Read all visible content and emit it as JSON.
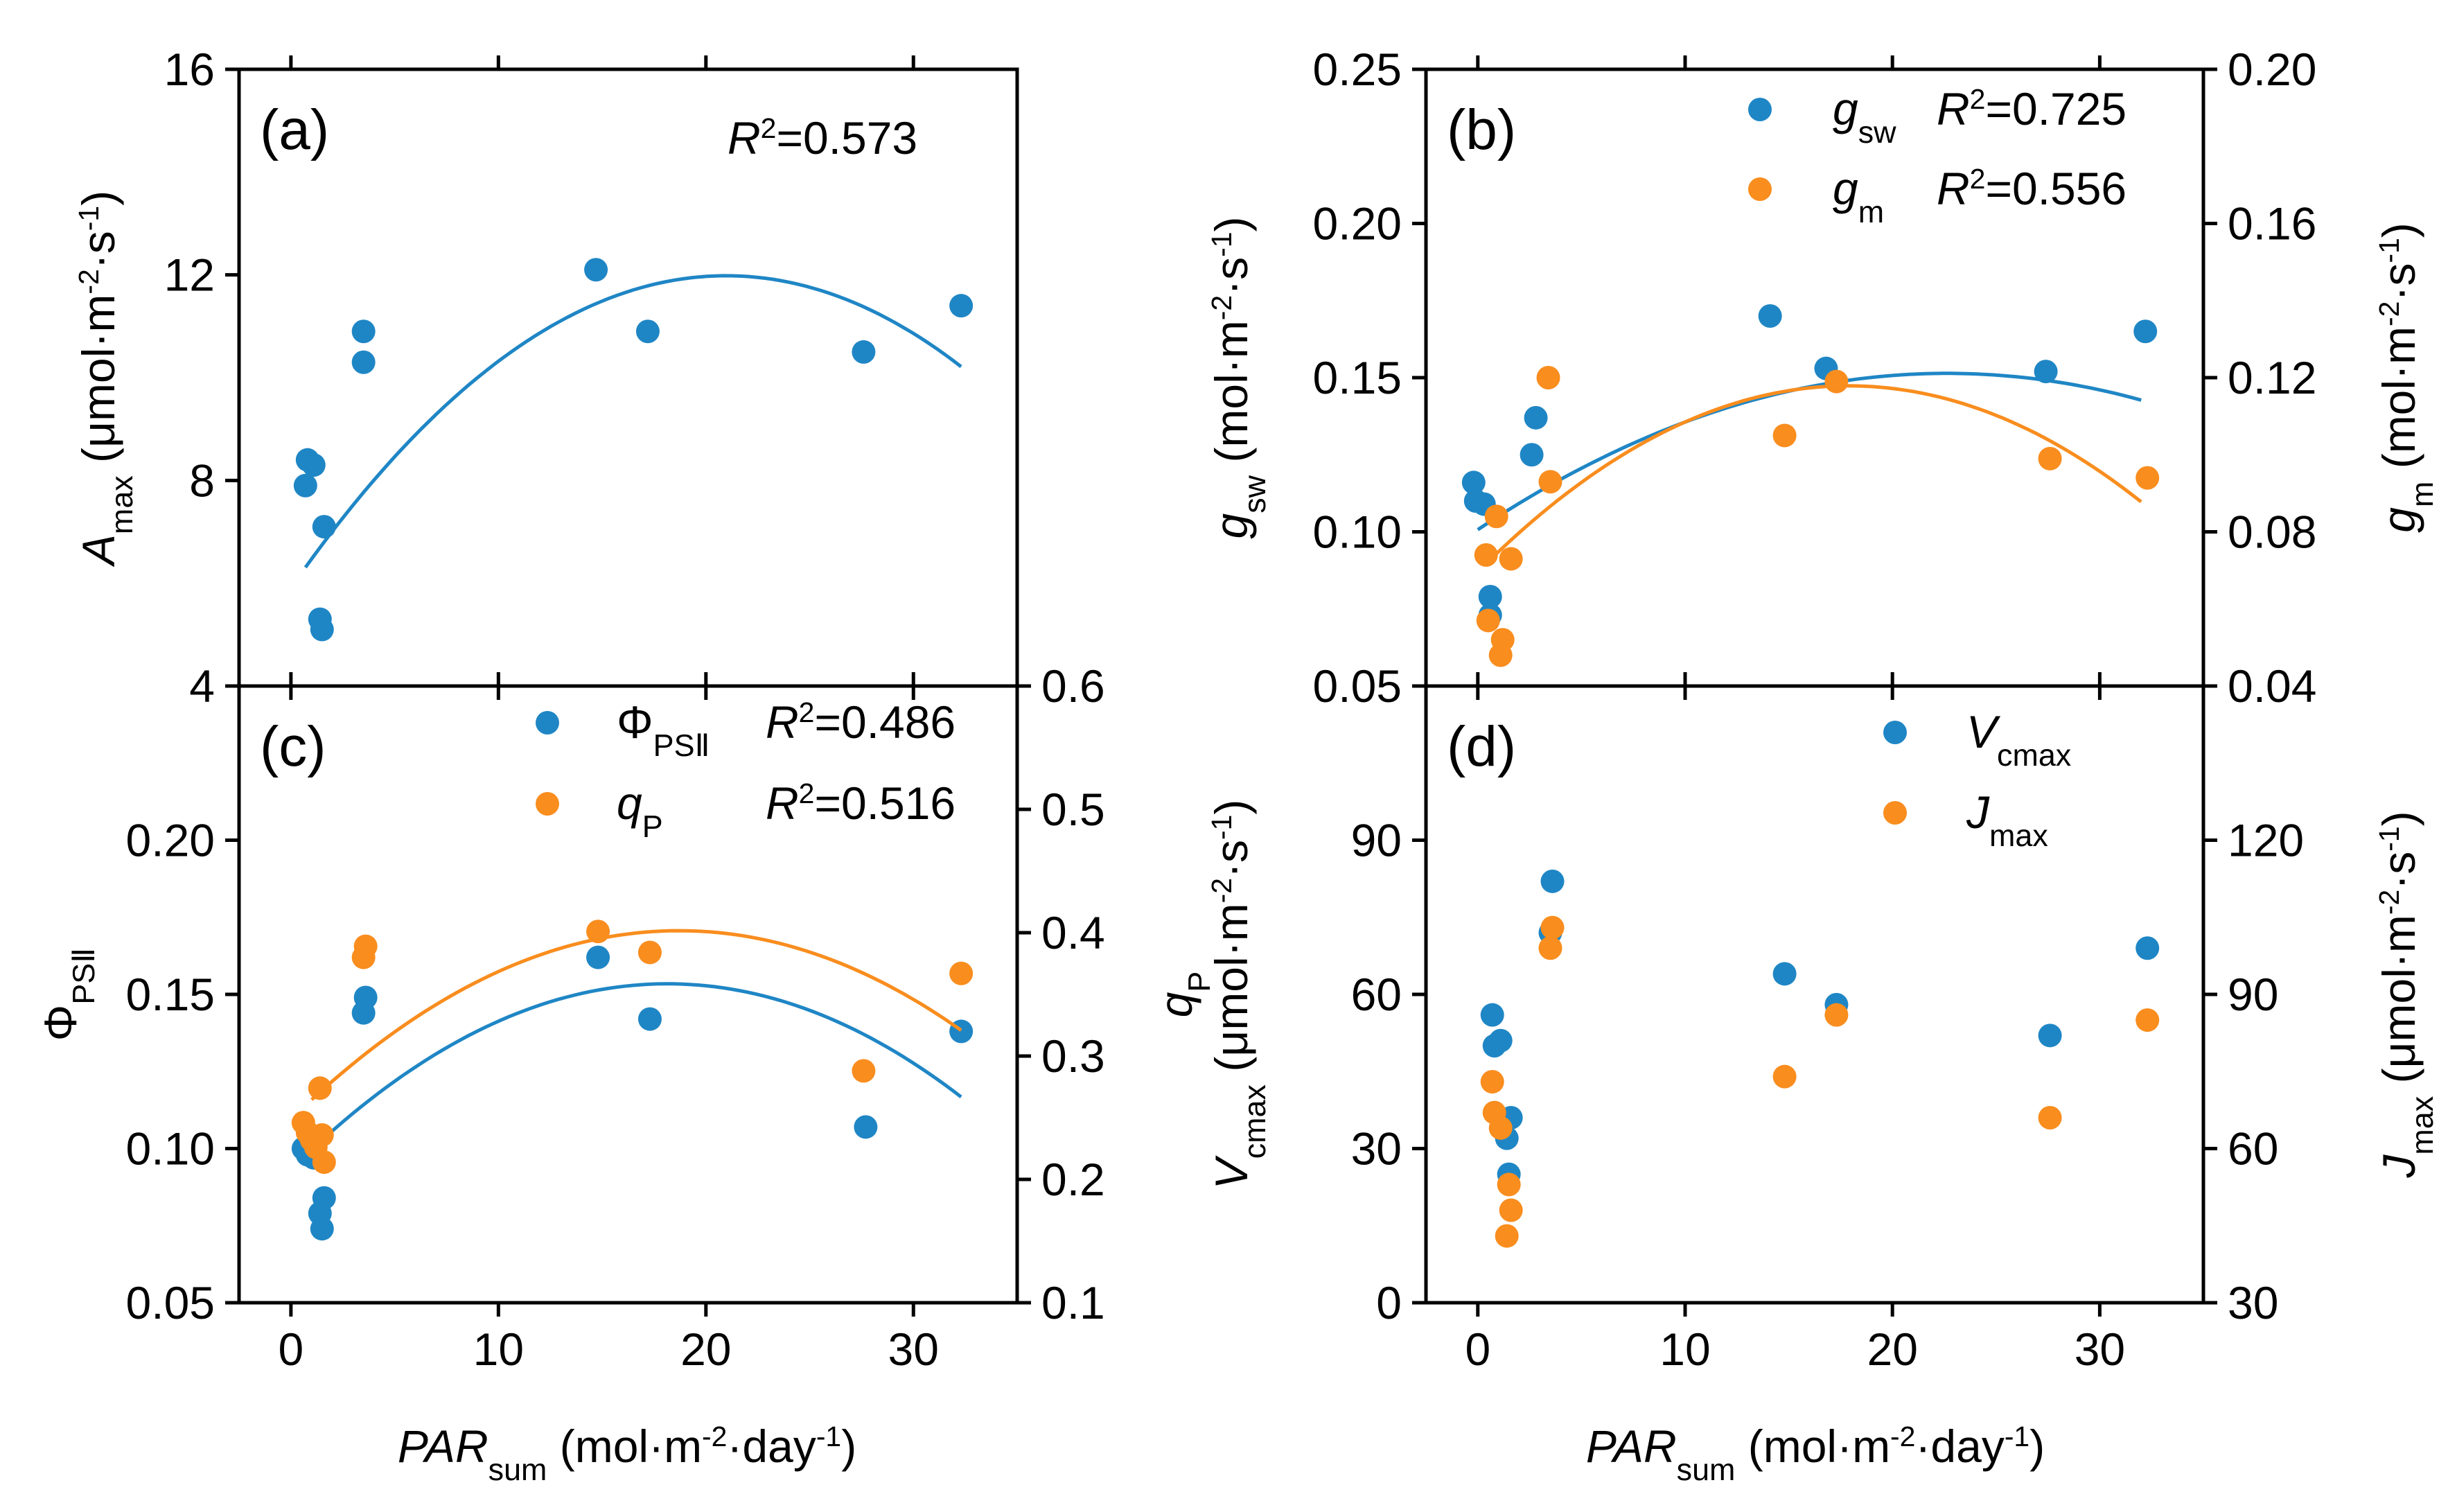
{
  "colors": {
    "blue": "#1f86c5",
    "orange": "#f98d1e",
    "axis": "#000000"
  },
  "symbols": {
    "middot": "·"
  },
  "chart_data": [
    {
      "id": "a",
      "type": "scatter",
      "panel_label": "(a)",
      "x_label": {
        "italic": "PAR",
        "sub": "sum",
        "unit_pre": "(mol",
        "sup1": "-2",
        "mid": "day",
        "sup2": "-1",
        "close": ")"
      },
      "y_left_label": {
        "italic": "A",
        "sub": "max",
        "unit_pre": "(μmol",
        "sup1": "-2",
        "mid": "s",
        "sup2": "-1",
        "close": ")"
      },
      "xlim": [
        -2.5,
        35
      ],
      "x_ticks": [
        "0",
        "10",
        "20",
        "30"
      ],
      "ylim_left": [
        4,
        16
      ],
      "y_left_ticks": [
        "4",
        "8",
        "12",
        "16"
      ],
      "series": [
        {
          "name": "Amax",
          "axis": "left",
          "color": "blue",
          "r2_text": "0.573",
          "x": [
            0.7,
            0.8,
            1.1,
            1.4,
            1.5,
            1.6,
            3.5,
            3.5,
            14.7,
            17.2,
            27.6,
            32.3
          ],
          "y": [
            7.9,
            8.4,
            8.3,
            5.3,
            5.1,
            7.1,
            10.9,
            10.3,
            12.1,
            10.9,
            10.5,
            11.4
          ],
          "fit": {
            "a": -0.0138,
            "b": 0.579,
            "c": 5.91,
            "x_range": [
              0.7,
              32.3
            ]
          }
        }
      ]
    },
    {
      "id": "b",
      "type": "scatter",
      "panel_label": "(b)",
      "y_left_label": {
        "italic": "g",
        "sub": "sw",
        "unit_pre": "(mol",
        "sup1": "-2",
        "mid": "s",
        "sup2": "-1",
        "close": ")"
      },
      "y_right_label": {
        "italic": "g",
        "sub": "m",
        "unit_pre": "(mol",
        "sup1": "-2",
        "mid": "s",
        "sup2": "-1",
        "close": ")"
      },
      "xlim": [
        -2.5,
        35
      ],
      "x_ticks": [
        "0",
        "10",
        "20",
        "30"
      ],
      "ylim_left": [
        0.05,
        0.25
      ],
      "y_left_ticks": [
        "0.05",
        "0.10",
        "0.15",
        "0.20",
        "0.25"
      ],
      "ylim_right": [
        0.04,
        0.2
      ],
      "y_right_ticks": [
        "0.04",
        "0.08",
        "0.12",
        "0.16",
        "0.20"
      ],
      "series": [
        {
          "name": "gsw",
          "legend": {
            "italic": "g",
            "sub": "sw"
          },
          "axis": "left",
          "color": "blue",
          "r2_text": "0.725",
          "x": [
            -0.2,
            -0.1,
            0.3,
            0.6,
            0.6,
            2.6,
            2.8,
            14.1,
            16.8,
            27.4,
            32.2
          ],
          "y": [
            0.116,
            0.11,
            0.109,
            0.079,
            0.073,
            0.125,
            0.137,
            0.17,
            0.153,
            0.152,
            0.165
          ],
          "fit": {
            "a": -9.89e-05,
            "b": 0.004478,
            "c": 0.1007,
            "x_range": [
              0,
              32
            ]
          }
        },
        {
          "name": "gm",
          "legend": {
            "italic": "g",
            "sub": "m"
          },
          "axis": "right",
          "color": "orange",
          "r2_text": "0.556",
          "x": [
            0.4,
            0.5,
            0.9,
            1.1,
            1.2,
            1.6,
            3.4,
            3.5,
            14.8,
            17.3,
            27.6,
            32.3
          ],
          "y": [
            0.074,
            0.057,
            0.084,
            0.048,
            0.052,
            0.073,
            0.12,
            0.093,
            0.105,
            0.119,
            0.099,
            0.094
          ],
          "fit": {
            "a": -0.000151,
            "b": 0.0054,
            "c": 0.0696,
            "x_range": [
              0.7,
              32
            ]
          }
        }
      ]
    },
    {
      "id": "c",
      "type": "scatter",
      "panel_label": "(c)",
      "x_label": {
        "italic": "PAR",
        "sub": "sum",
        "unit_pre": "(mol",
        "sup1": "-2",
        "mid": "day",
        "sup2": "-1",
        "close": ")"
      },
      "y_left_label": {
        "phi": "Φ",
        "sub": "PSⅡ"
      },
      "y_right_label": {
        "italic": "q",
        "sub": "P"
      },
      "xlim": [
        -2.5,
        35
      ],
      "x_ticks": [
        "0",
        "10",
        "20",
        "30"
      ],
      "ylim_left": [
        0.05,
        0.25
      ],
      "y_left_ticks": [
        "0.05",
        "0.10",
        "0.15",
        "0.20"
      ],
      "ylim_right": [
        0.1,
        0.6
      ],
      "y_right_ticks": [
        "0.1",
        "0.2",
        "0.3",
        "0.4",
        "0.5",
        "0.6"
      ],
      "series": [
        {
          "name": "PhiPSII",
          "legend": {
            "phi": "Φ",
            "sub": "PSⅡ"
          },
          "axis": "left",
          "color": "blue",
          "r2_text": "0.486",
          "x": [
            0.6,
            0.8,
            1.1,
            1.4,
            1.6,
            1.5,
            3.5,
            3.6,
            14.8,
            17.3,
            27.7,
            32.3
          ],
          "y": [
            0.1,
            0.098,
            0.097,
            0.079,
            0.084,
            0.074,
            0.144,
            0.149,
            0.162,
            0.142,
            0.107,
            0.138
          ],
          "fit": {
            "a": -0.000183,
            "b": 0.00664,
            "c": 0.0932,
            "x_range": [
              0.6,
              32.3
            ]
          }
        },
        {
          "name": "qP",
          "legend": {
            "italic": "q",
            "sub": "P"
          },
          "axis": "right",
          "color": "orange",
          "r2_text": "0.516",
          "x": [
            0.6,
            0.8,
            1.0,
            1.2,
            1.5,
            1.6,
            1.4,
            3.5,
            3.6,
            14.8,
            17.3,
            27.6,
            32.3
          ],
          "y": [
            0.246,
            0.238,
            0.232,
            0.226,
            0.236,
            0.214,
            0.274,
            0.38,
            0.389,
            0.401,
            0.384,
            0.288,
            0.367
          ],
          "fit": {
            "a": -0.000437,
            "b": 0.01635,
            "c": 0.2487,
            "x_range": [
              1.0,
              32.3
            ]
          }
        }
      ]
    },
    {
      "id": "d",
      "type": "scatter",
      "panel_label": "(d)",
      "x_label": {
        "italic": "PAR",
        "sub": "sum",
        "unit_pre": "(mol",
        "sup1": "-2",
        "mid": "day",
        "sup2": "-1",
        "close": ")"
      },
      "y_left_label": {
        "italic": "V",
        "sub": "cmax",
        "unit_pre": "(μmol",
        "sup1": "-2",
        "mid": "s",
        "sup2": "-1",
        "close": ")"
      },
      "y_right_label": {
        "italic": "J",
        "sub": "max",
        "unit_pre": "(μmol",
        "sup1": "-2",
        "mid": "s",
        "sup2": "-1",
        "close": ")"
      },
      "xlim": [
        -2.5,
        35
      ],
      "x_ticks": [
        "0",
        "10",
        "20",
        "30"
      ],
      "ylim_left": [
        0,
        120
      ],
      "y_left_ticks": [
        "0",
        "30",
        "60",
        "90"
      ],
      "ylim_right": [
        30,
        150
      ],
      "y_right_ticks": [
        "30",
        "60",
        "90",
        "120"
      ],
      "series": [
        {
          "name": "Vcmax",
          "legend": {
            "italic": "V",
            "sub": "cmax"
          },
          "axis": "left",
          "color": "blue",
          "x": [
            0.7,
            0.8,
            1.1,
            1.4,
            1.5,
            1.6,
            3.5,
            3.6,
            14.8,
            17.3,
            27.6,
            32.3
          ],
          "y": [
            56,
            50,
            51,
            32,
            25,
            36,
            72,
            82,
            64,
            58,
            52,
            69
          ]
        },
        {
          "name": "Jmax",
          "legend": {
            "italic": "J",
            "sub": "max"
          },
          "axis": "right",
          "color": "orange",
          "x": [
            0.7,
            0.8,
            1.1,
            1.4,
            1.6,
            1.5,
            3.5,
            3.6,
            14.8,
            17.3,
            27.6,
            32.3
          ],
          "y": [
            73,
            67,
            64,
            43,
            48,
            53,
            99,
            103,
            74,
            86,
            66,
            85
          ]
        }
      ]
    }
  ]
}
